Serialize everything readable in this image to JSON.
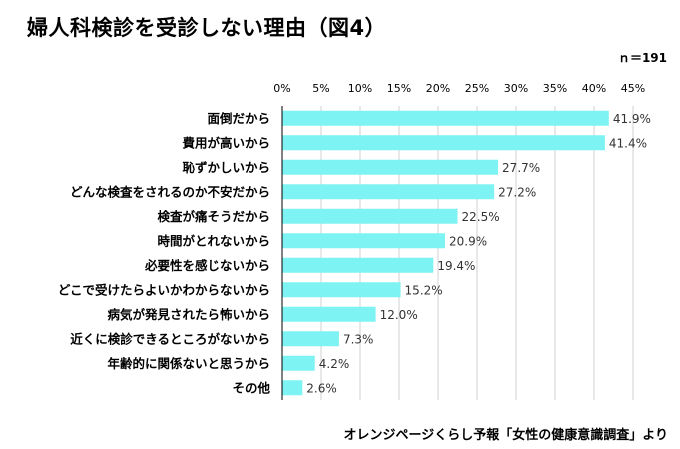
{
  "title": "婦人科検診を受診しない理由（図4）",
  "n_label": "ｎ＝191",
  "source": "オレンジページくらし予報「女性の健康意識調査」より",
  "colors": {
    "bar": "#7ef3f3",
    "grid": "#d0d0d0",
    "axis": "#000000"
  },
  "chart_data": {
    "type": "bar",
    "orientation": "horizontal",
    "xlim": [
      0,
      45
    ],
    "xticks": [
      "0%",
      "5%",
      "10%",
      "15%",
      "20%",
      "25%",
      "30%",
      "35%",
      "40%",
      "45%"
    ],
    "grid": true,
    "categories": [
      "面倒だから",
      "費用が高いから",
      "恥ずかしいから",
      "どんな検査をされるのか不安だから",
      "検査が痛そうだから",
      "時間がとれないから",
      "必要性を感じないから",
      "どこで受けたらよいかわからないから",
      "病気が発見されたら怖いから",
      "近くに検診できるところがないから",
      "年齢的に関係ないと思うから",
      "その他"
    ],
    "values": [
      41.9,
      41.4,
      27.7,
      27.2,
      22.5,
      20.9,
      19.4,
      15.2,
      12.0,
      7.3,
      4.2,
      2.6
    ],
    "value_labels": [
      "41.9%",
      "41.4%",
      "27.7%",
      "27.2%",
      "22.5%",
      "20.9%",
      "19.4%",
      "15.2%",
      "12.0%",
      "7.3%",
      "4.2%",
      "2.6%"
    ]
  }
}
